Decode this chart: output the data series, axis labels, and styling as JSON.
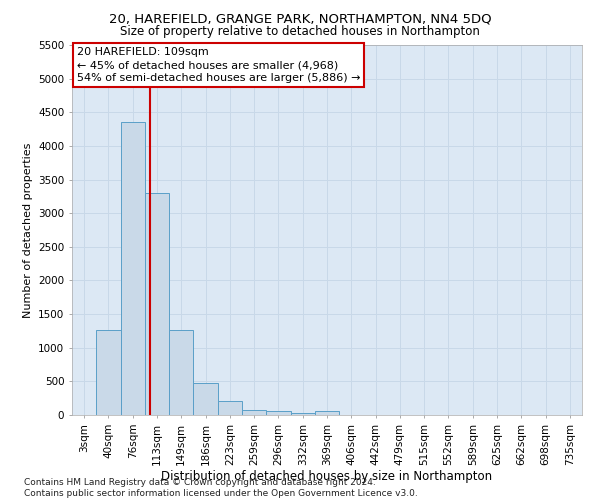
{
  "title": "20, HAREFIELD, GRANGE PARK, NORTHAMPTON, NN4 5DQ",
  "subtitle": "Size of property relative to detached houses in Northampton",
  "xlabel": "Distribution of detached houses by size in Northampton",
  "ylabel": "Number of detached properties",
  "bar_labels": [
    "3sqm",
    "40sqm",
    "76sqm",
    "113sqm",
    "149sqm",
    "186sqm",
    "223sqm",
    "259sqm",
    "296sqm",
    "332sqm",
    "369sqm",
    "406sqm",
    "442sqm",
    "479sqm",
    "515sqm",
    "552sqm",
    "589sqm",
    "625sqm",
    "662sqm",
    "698sqm",
    "735sqm"
  ],
  "bar_values": [
    0,
    1270,
    4350,
    3300,
    1270,
    480,
    210,
    80,
    55,
    30,
    55,
    0,
    0,
    0,
    0,
    0,
    0,
    0,
    0,
    0,
    0
  ],
  "bar_color": "#c9d9e8",
  "bar_edge_color": "#5a9fc8",
  "vline_color": "#cc0000",
  "vline_x": 2.7,
  "annotation_text": "20 HAREFIELD: 109sqm\n← 45% of detached houses are smaller (4,968)\n54% of semi-detached houses are larger (5,886) →",
  "annotation_box_color": "#ffffff",
  "annotation_box_edge": "#cc0000",
  "ylim": [
    0,
    5500
  ],
  "yticks": [
    0,
    500,
    1000,
    1500,
    2000,
    2500,
    3000,
    3500,
    4000,
    4500,
    5000,
    5500
  ],
  "grid_color": "#c8d8e8",
  "background_color": "#dce8f4",
  "footnote": "Contains HM Land Registry data © Crown copyright and database right 2024.\nContains public sector information licensed under the Open Government Licence v3.0.",
  "title_fontsize": 9.5,
  "subtitle_fontsize": 8.5,
  "xlabel_fontsize": 8.5,
  "ylabel_fontsize": 8,
  "tick_fontsize": 7.5,
  "annotation_fontsize": 8,
  "footnote_fontsize": 6.5
}
